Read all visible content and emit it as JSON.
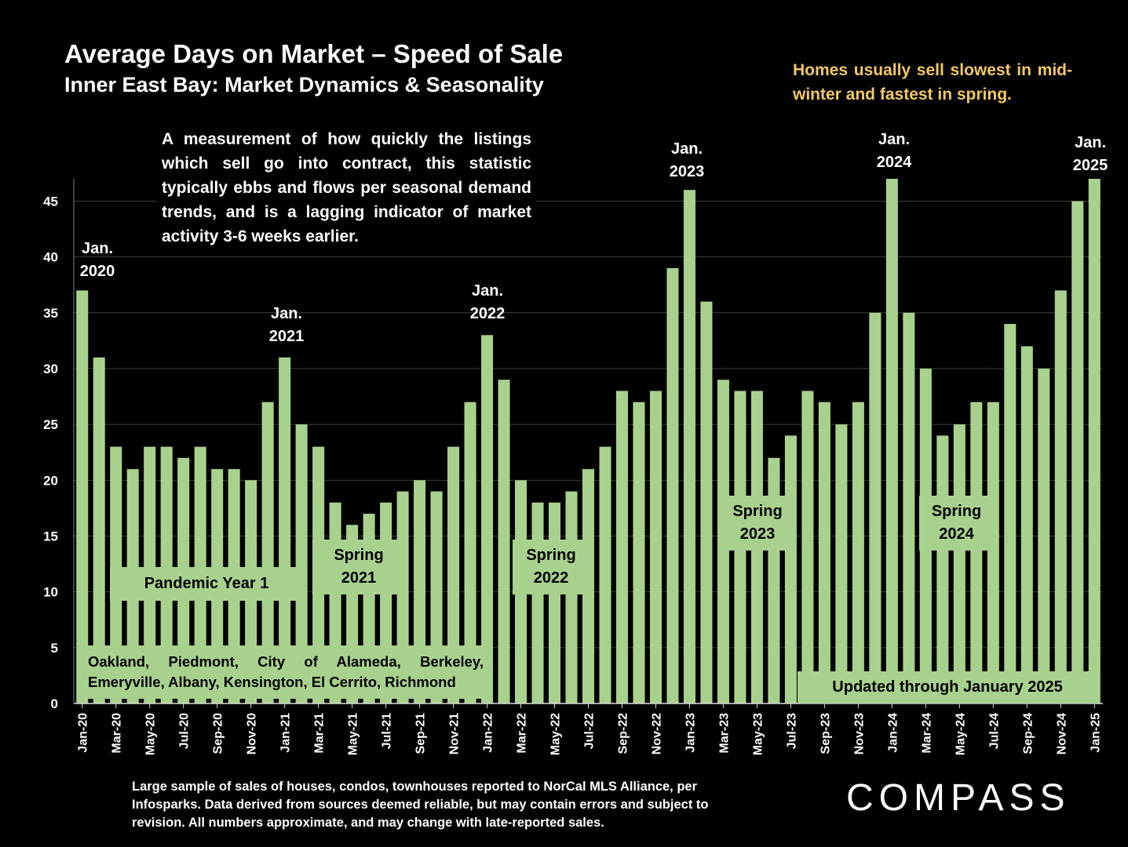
{
  "title": "Average Days on Market – Speed of Sale",
  "subtitle": "Inner East Bay: Market Dynamics & Seasonality",
  "seasonality_note": "Homes usually sell slowest in mid-winter and fastest in spring.",
  "description": "A measurement of how quickly the listings which sell go into contract, this statistic typically ebbs and flows per seasonal demand trends, and is a lagging indicator of market activity 3-6 weeks earlier.",
  "footer": "Large sample of sales of houses, condos, townhouses reported to NorCal MLS Alliance, per Infosparks. Data derived from sources deemed reliable, but may contain errors and subject to revision. All numbers approximate, and may change with late-reported sales.",
  "logo_text": "COMPASS",
  "colors": {
    "bar": "#a9d18e",
    "background": "#000000",
    "note": "#f3c867",
    "grid": "#404040"
  },
  "annotations": {
    "jan_labels": [
      {
        "line1": "Jan.",
        "line2": "2020"
      },
      {
        "line1": "Jan.",
        "line2": "2021"
      },
      {
        "line1": "Jan.",
        "line2": "2022"
      },
      {
        "line1": "Jan.",
        "line2": "2023"
      },
      {
        "line1": "Jan.",
        "line2": "2024"
      },
      {
        "line1": "Jan.",
        "line2": "2025"
      }
    ],
    "pandemic": "Pandemic Year 1",
    "spring": [
      {
        "line1": "Spring",
        "line2": "2021"
      },
      {
        "line1": "Spring",
        "line2": "2022"
      },
      {
        "line1": "Spring",
        "line2": "2023"
      },
      {
        "line1": "Spring",
        "line2": "2024"
      }
    ],
    "cities": "Oakland, Piedmont, City of Alameda, Berkeley, Emeryville, Albany, Kensington, El Cerrito, Richmond",
    "updated": "Updated through January 2025"
  },
  "chart_data": {
    "type": "bar",
    "title": "Average Days on Market – Speed of Sale",
    "subtitle": "Inner East Bay: Market Dynamics & Seasonality",
    "xlabel": "",
    "ylabel": "",
    "ylim": [
      0,
      47
    ],
    "yticks": [
      0,
      5,
      10,
      15,
      20,
      25,
      30,
      35,
      40,
      45
    ],
    "grid": true,
    "legend": "none",
    "categories": [
      "Jan-20",
      "Feb-20",
      "Mar-20",
      "Apr-20",
      "May-20",
      "Jun-20",
      "Jul-20",
      "Aug-20",
      "Sep-20",
      "Oct-20",
      "Nov-20",
      "Dec-20",
      "Jan-21",
      "Feb-21",
      "Mar-21",
      "Apr-21",
      "May-21",
      "Jun-21",
      "Jul-21",
      "Aug-21",
      "Sep-21",
      "Oct-21",
      "Nov-21",
      "Dec-21",
      "Jan-22",
      "Feb-22",
      "Mar-22",
      "Apr-22",
      "May-22",
      "Jun-22",
      "Jul-22",
      "Aug-22",
      "Sep-22",
      "Oct-22",
      "Nov-22",
      "Dec-22",
      "Jan-23",
      "Feb-23",
      "Mar-23",
      "Apr-23",
      "May-23",
      "Jun-23",
      "Jul-23",
      "Aug-23",
      "Sep-23",
      "Oct-23",
      "Nov-23",
      "Dec-23",
      "Jan-24",
      "Feb-24",
      "Mar-24",
      "Apr-24",
      "May-24",
      "Jun-24",
      "Jul-24",
      "Aug-24",
      "Sep-24",
      "Oct-24",
      "Nov-24",
      "Dec-24",
      "Jan-25"
    ],
    "tick_labels": [
      "Jan-20",
      "Mar-20",
      "May-20",
      "Jul-20",
      "Sep-20",
      "Nov-20",
      "Jan-21",
      "Mar-21",
      "May-21",
      "Jul-21",
      "Sep-21",
      "Nov-21",
      "Jan-22",
      "Mar-22",
      "May-22",
      "Jul-22",
      "Sep-22",
      "Nov-22",
      "Jan-23",
      "Mar-23",
      "May-23",
      "Jul-23",
      "Sep-23",
      "Nov-23",
      "Jan-24",
      "Mar-24",
      "May-24",
      "Jul-24",
      "Sep-24",
      "Nov-24",
      "Jan-25"
    ],
    "values": [
      37,
      31,
      23,
      21,
      23,
      23,
      22,
      23,
      21,
      21,
      20,
      27,
      31,
      25,
      23,
      18,
      16,
      17,
      18,
      19,
      20,
      19,
      23,
      27,
      33,
      29,
      20,
      18,
      18,
      19,
      21,
      23,
      28,
      27,
      28,
      39,
      46,
      36,
      29,
      28,
      28,
      22,
      24,
      28,
      27,
      25,
      27,
      35,
      47,
      35,
      30,
      24,
      25,
      27,
      27,
      34,
      32,
      30,
      37,
      45,
      47
    ]
  }
}
